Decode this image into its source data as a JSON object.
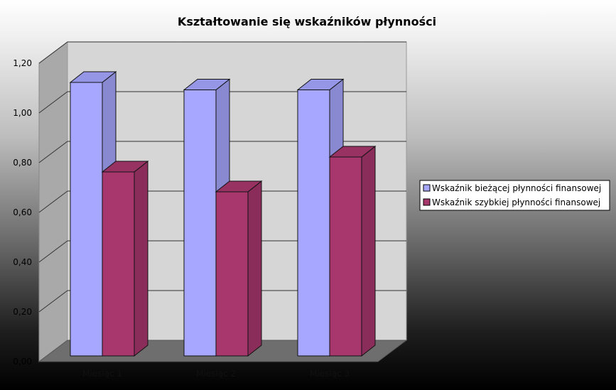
{
  "chart_data": {
    "type": "bar",
    "title": "Kształtowanie się wskaźników płynności",
    "xlabel": "",
    "ylabel": "",
    "categories": [
      "Miesiąc 1",
      "Miesiąc 2",
      "Miesiąc 3"
    ],
    "series": [
      {
        "name": "Wskaźnik bieżącej płynności finansowej",
        "values": [
          1.1,
          1.07,
          1.07
        ],
        "color": "#a7a7ff"
      },
      {
        "name": "Wskaźnik szybkiej płynności finansowej",
        "values": [
          0.74,
          0.66,
          0.8
        ],
        "color": "#a8376e"
      }
    ],
    "ylim": [
      0,
      1.2
    ],
    "yticks": [
      "0,00",
      "0,20",
      "0,40",
      "0,60",
      "0,80",
      "1,00",
      "1,20"
    ],
    "grid": true,
    "legend_position": "right",
    "three_d": true,
    "wall_color": "#d6d6d6",
    "floor_color": "#6e6e6e"
  }
}
